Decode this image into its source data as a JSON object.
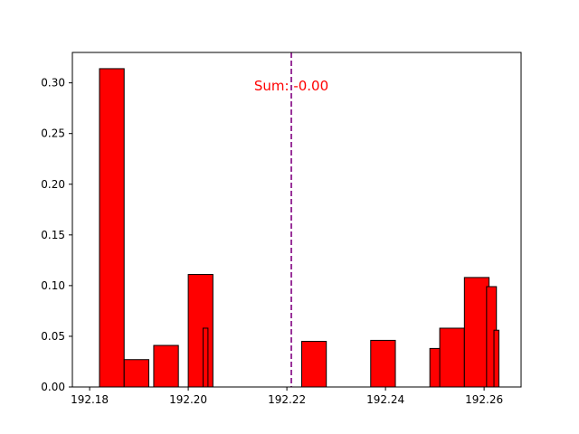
{
  "chart_data": {
    "type": "bar",
    "bar_color": "#ff0000",
    "edge_color": "#000000",
    "bars": [
      {
        "x": 192.1845,
        "width": 0.005,
        "value": 0.314
      },
      {
        "x": 192.1895,
        "width": 0.005,
        "value": 0.027
      },
      {
        "x": 192.1955,
        "width": 0.005,
        "value": 0.041
      },
      {
        "x": 192.2025,
        "width": 0.005,
        "value": 0.111
      },
      {
        "x": 192.2035,
        "width": 0.001,
        "value": 0.058
      },
      {
        "x": 192.2255,
        "width": 0.005,
        "value": 0.045
      },
      {
        "x": 192.2395,
        "width": 0.005,
        "value": 0.046
      },
      {
        "x": 192.2515,
        "width": 0.005,
        "value": 0.038
      },
      {
        "x": 192.2535,
        "width": 0.005,
        "value": 0.058
      },
      {
        "x": 192.2585,
        "width": 0.005,
        "value": 0.108
      },
      {
        "x": 192.2615,
        "width": 0.002,
        "value": 0.099
      },
      {
        "x": 192.2625,
        "width": 0.001,
        "value": 0.056
      }
    ],
    "vline": {
      "x": 192.2209,
      "color": "#800080",
      "style": "dashed"
    },
    "annotation": {
      "text": "Sum: -0.00",
      "x": 192.2209,
      "y": 0.297,
      "color": "#ff0000"
    },
    "xlim": [
      192.1765,
      192.2675
    ],
    "ylim": [
      0,
      0.33
    ],
    "xticks": [
      192.18,
      192.2,
      192.22,
      192.24,
      192.26
    ],
    "xtick_labels": [
      "192.18",
      "192.20",
      "192.22",
      "192.24",
      "192.26"
    ],
    "yticks": [
      0,
      0.05,
      0.1,
      0.15,
      0.2,
      0.25,
      0.3
    ],
    "ytick_labels": [
      "0.00",
      "0.05",
      "0.10",
      "0.15",
      "0.20",
      "0.25",
      "0.30"
    ],
    "title": "",
    "xlabel": "",
    "ylabel": "",
    "grid": false
  }
}
